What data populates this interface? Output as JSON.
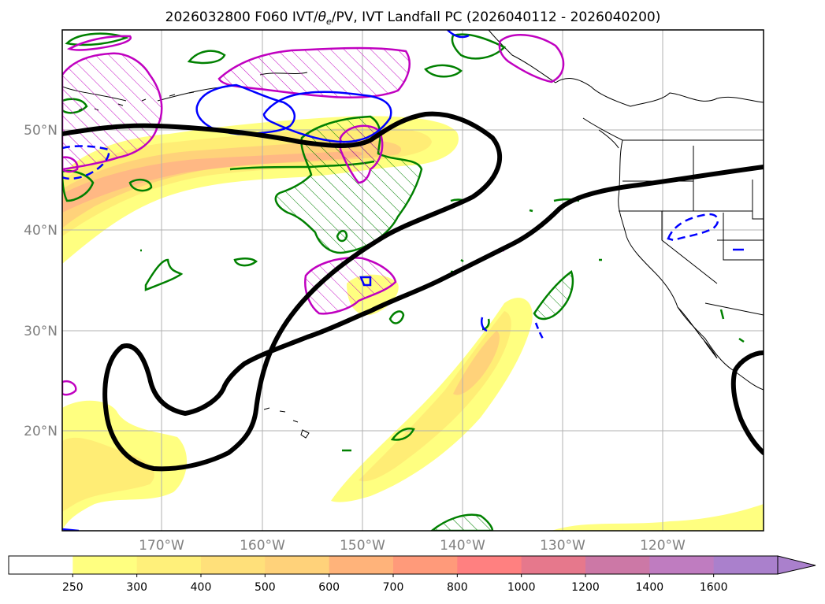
{
  "title": {
    "prefix": "2026032800 F060 IVT/",
    "symbol": "θ",
    "subscript": "e",
    "suffix": "/PV, IVT Landfall PC (2026040112 - 2026040200)"
  },
  "map": {
    "lat_labels": [
      "50°N",
      "40°N",
      "30°N",
      "20°N"
    ],
    "lon_labels": [
      "170°W",
      "160°W",
      "150°W",
      "140°W",
      "130°W",
      "120°W"
    ],
    "gridline_color": "#b0b0b0",
    "land_color": "#000000"
  },
  "colorbar": {
    "ticks": [
      "250",
      "300",
      "400",
      "500",
      "600",
      "700",
      "800",
      "1000",
      "1200",
      "1400",
      "1600"
    ],
    "colors": [
      "#ffffff",
      "#ffff80",
      "#fff07a",
      "#ffe07a",
      "#ffd27a",
      "#ffb37a",
      "#ff9a7a",
      "#ff8080",
      "#e6788c",
      "#cc78a6",
      "#bf7cc0",
      "#aa80cc"
    ],
    "extend": "max"
  },
  "contours": {
    "thick_line_color": "#000000",
    "green_color": "#008000",
    "magenta_color": "#c000c0",
    "blue_color": "#0000ff"
  }
}
